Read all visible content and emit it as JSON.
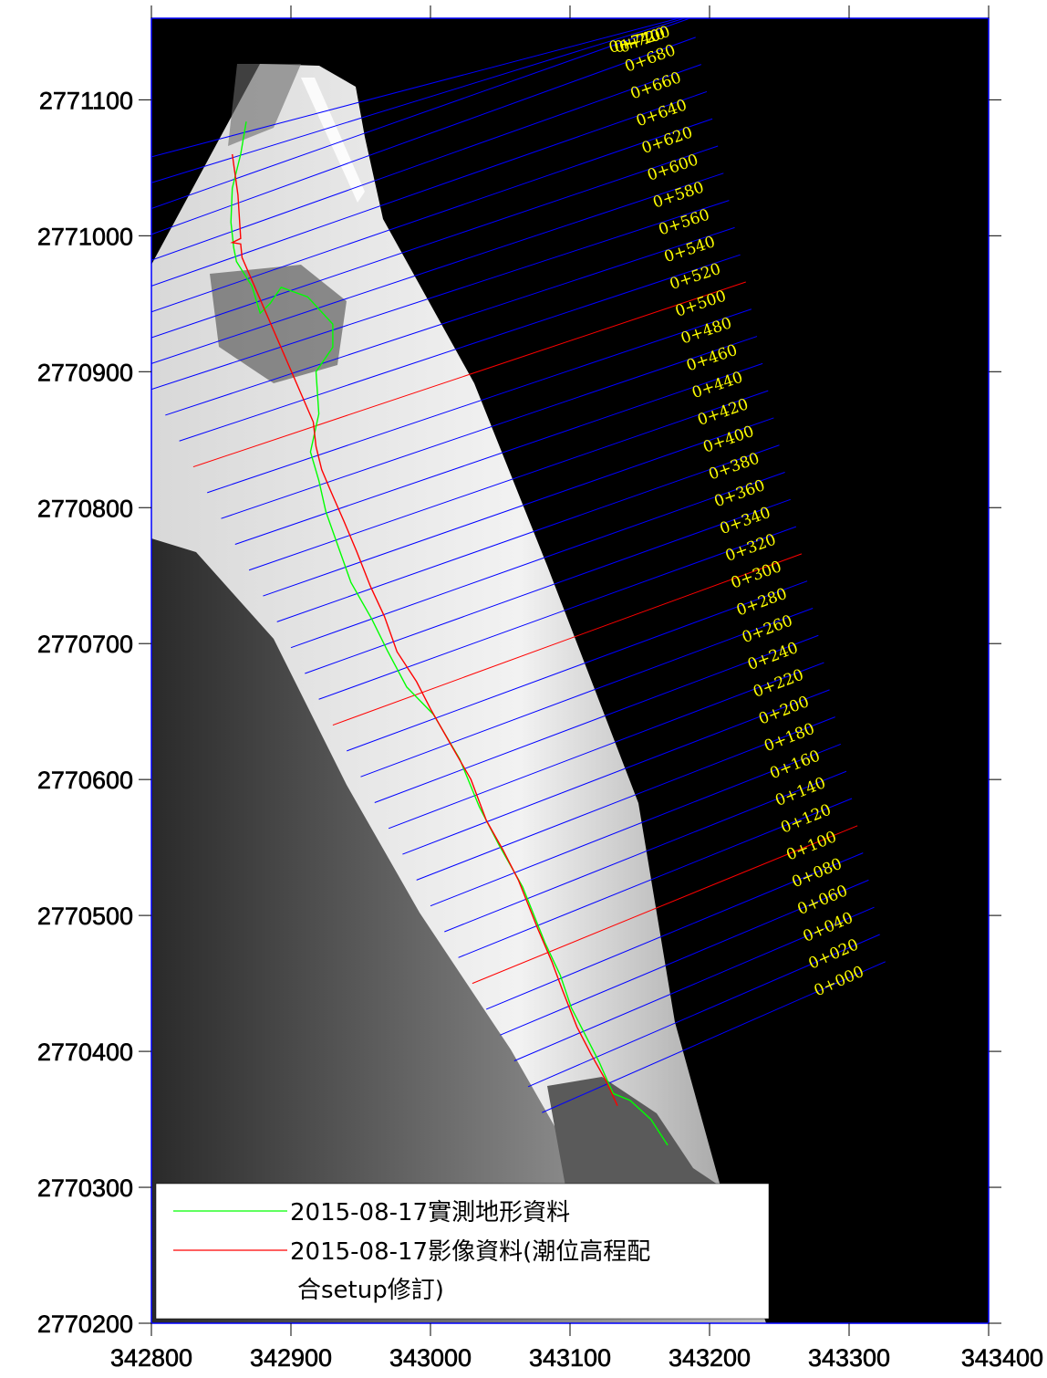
{
  "chart_data": {
    "type": "line",
    "x_axis": {
      "ticks": [
        342800,
        342900,
        343000,
        343100,
        343200,
        343300,
        343400
      ],
      "tick_labels": [
        "342800",
        "342900",
        "343000",
        "343100",
        "343200",
        "343300",
        "343400"
      ],
      "range": [
        342800,
        343400
      ]
    },
    "y_axis": {
      "ticks": [
        2770200,
        2770300,
        2770400,
        2770500,
        2770600,
        2770700,
        2770800,
        2770900,
        2771000,
        2771100
      ],
      "tick_labels": [
        "2770200",
        "2770300",
        "2770400",
        "2770500",
        "2770600",
        "2770700",
        "2770800",
        "2770900",
        "2771000",
        "2771100"
      ],
      "range": [
        2770200,
        2771160
      ]
    },
    "grid": false,
    "background": "grayscale aerial orthophoto with black no-data region",
    "series": [
      {
        "name": "2015-08-17實測地形資料",
        "color": "#00ff00",
        "points": [
          [
            343170,
            2770331
          ],
          [
            343158,
            2770350
          ],
          [
            343143,
            2770364
          ],
          [
            343131,
            2770369
          ],
          [
            343127,
            2770378
          ],
          [
            343121,
            2770392
          ],
          [
            343111,
            2770412
          ],
          [
            343101,
            2770432
          ],
          [
            343093,
            2770456
          ],
          [
            343082,
            2770480
          ],
          [
            343066,
            2770521
          ],
          [
            343049,
            2770552
          ],
          [
            343035,
            2770580
          ],
          [
            343021,
            2770615
          ],
          [
            343002,
            2770648
          ],
          [
            342983,
            2770668
          ],
          [
            342969,
            2770695
          ],
          [
            342958,
            2770718
          ],
          [
            342943,
            2770745
          ],
          [
            342935,
            2770768
          ],
          [
            342925,
            2770797
          ],
          [
            342920,
            2770820
          ],
          [
            342914,
            2770841
          ],
          [
            342920,
            2770869
          ],
          [
            342918,
            2770900
          ],
          [
            342930,
            2770918
          ],
          [
            342930,
            2770935
          ],
          [
            342912,
            2770955
          ],
          [
            342893,
            2770962
          ],
          [
            342885,
            2770950
          ],
          [
            342878,
            2770943
          ],
          [
            342872,
            2770963
          ],
          [
            342861,
            2770981
          ],
          [
            342859,
            2770991
          ],
          [
            342857,
            2771010
          ],
          [
            342858,
            2771035
          ],
          [
            342864,
            2771060
          ],
          [
            342868,
            2771084
          ]
        ]
      },
      {
        "name": "2015-08-17影像資料(潮位高程配合setup修訂)",
        "color": "#ff0000",
        "points": [
          [
            343134,
            2770360
          ],
          [
            343126,
            2770378
          ],
          [
            343115,
            2770398
          ],
          [
            343105,
            2770418
          ],
          [
            343095,
            2770444
          ],
          [
            343087,
            2770466
          ],
          [
            343077,
            2770490
          ],
          [
            343063,
            2770526
          ],
          [
            343052,
            2770548
          ],
          [
            343040,
            2770570
          ],
          [
            343029,
            2770600
          ],
          [
            343015,
            2770625
          ],
          [
            343000,
            2770652
          ],
          [
            342990,
            2770672
          ],
          [
            342976,
            2770694
          ],
          [
            342967,
            2770720
          ],
          [
            342957,
            2770742
          ],
          [
            342947,
            2770768
          ],
          [
            342938,
            2770790
          ],
          [
            342929,
            2770811
          ],
          [
            342922,
            2770828
          ],
          [
            342918,
            2770845
          ],
          [
            342916,
            2770863
          ],
          [
            342865,
            2770984
          ],
          [
            342864,
            2770994
          ],
          [
            342858,
            2770995
          ],
          [
            342864,
            2770998
          ],
          [
            342862,
            2771030
          ],
          [
            342858,
            2771060
          ]
        ]
      }
    ],
    "transects": [
      {
        "label": "0+000",
        "line": [
          [
            343080,
            2770355
          ],
          [
            343326,
            2770466
          ]
        ],
        "color": "#0000ff"
      },
      {
        "label": "0+020",
        "line": [
          [
            343070,
            2770374
          ],
          [
            343322,
            2770486
          ]
        ],
        "color": "#0000ff"
      },
      {
        "label": "0+040",
        "line": [
          [
            343060,
            2770393
          ],
          [
            343318,
            2770506
          ]
        ],
        "color": "#0000ff"
      },
      {
        "label": "0+060",
        "line": [
          [
            343050,
            2770412
          ],
          [
            343314,
            2770526
          ]
        ],
        "color": "#0000ff"
      },
      {
        "label": "0+080",
        "line": [
          [
            343040,
            2770431
          ],
          [
            343310,
            2770546
          ]
        ],
        "color": "#0000ff"
      },
      {
        "label": "0+100",
        "line": [
          [
            343030,
            2770450
          ],
          [
            343306,
            2770566
          ]
        ],
        "color": "#ff0000"
      },
      {
        "label": "0+120",
        "line": [
          [
            343020,
            2770469
          ],
          [
            343302,
            2770586
          ]
        ],
        "color": "#0000ff"
      },
      {
        "label": "0+140",
        "line": [
          [
            343010,
            2770488
          ],
          [
            343298,
            2770606
          ]
        ],
        "color": "#0000ff"
      },
      {
        "label": "0+160",
        "line": [
          [
            343000,
            2770507
          ],
          [
            343294,
            2770626
          ]
        ],
        "color": "#0000ff"
      },
      {
        "label": "0+180",
        "line": [
          [
            342990,
            2770526
          ],
          [
            343290,
            2770646
          ]
        ],
        "color": "#0000ff"
      },
      {
        "label": "0+200",
        "line": [
          [
            342980,
            2770545
          ],
          [
            343286,
            2770666
          ]
        ],
        "color": "#0000ff"
      },
      {
        "label": "0+220",
        "line": [
          [
            342970,
            2770564
          ],
          [
            343282,
            2770686
          ]
        ],
        "color": "#0000ff"
      },
      {
        "label": "0+240",
        "line": [
          [
            342960,
            2770583
          ],
          [
            343278,
            2770706
          ]
        ],
        "color": "#0000ff"
      },
      {
        "label": "0+260",
        "line": [
          [
            342950,
            2770602
          ],
          [
            343274,
            2770726
          ]
        ],
        "color": "#0000ff"
      },
      {
        "label": "0+280",
        "line": [
          [
            342940,
            2770621
          ],
          [
            343270,
            2770746
          ]
        ],
        "color": "#0000ff"
      },
      {
        "label": "0+300",
        "line": [
          [
            342930,
            2770640
          ],
          [
            343266,
            2770766
          ]
        ],
        "color": "#ff0000"
      },
      {
        "label": "0+320",
        "line": [
          [
            342920,
            2770659
          ],
          [
            343262,
            2770786
          ]
        ],
        "color": "#0000ff"
      },
      {
        "label": "0+340",
        "line": [
          [
            342910,
            2770678
          ],
          [
            343258,
            2770806
          ]
        ],
        "color": "#0000ff"
      },
      {
        "label": "0+360",
        "line": [
          [
            342900,
            2770697
          ],
          [
            343254,
            2770826
          ]
        ],
        "color": "#0000ff"
      },
      {
        "label": "0+380",
        "line": [
          [
            342890,
            2770716
          ],
          [
            343250,
            2770846
          ]
        ],
        "color": "#0000ff"
      },
      {
        "label": "0+400",
        "line": [
          [
            342880,
            2770735
          ],
          [
            343246,
            2770866
          ]
        ],
        "color": "#0000ff"
      },
      {
        "label": "0+420",
        "line": [
          [
            342870,
            2770754
          ],
          [
            343242,
            2770886
          ]
        ],
        "color": "#0000ff"
      },
      {
        "label": "0+440",
        "line": [
          [
            342860,
            2770773
          ],
          [
            343238,
            2770906
          ]
        ],
        "color": "#0000ff"
      },
      {
        "label": "0+460",
        "line": [
          [
            342850,
            2770792
          ],
          [
            343234,
            2770926
          ]
        ],
        "color": "#0000ff"
      },
      {
        "label": "0+480",
        "line": [
          [
            342840,
            2770811
          ],
          [
            343230,
            2770946
          ]
        ],
        "color": "#0000ff"
      },
      {
        "label": "0+500",
        "line": [
          [
            342830,
            2770830
          ],
          [
            343226,
            2770966
          ]
        ],
        "color": "#ff0000"
      },
      {
        "label": "0+520",
        "line": [
          [
            342820,
            2770849
          ],
          [
            343222,
            2770986
          ]
        ],
        "color": "#0000ff"
      },
      {
        "label": "0+540",
        "line": [
          [
            342810,
            2770868
          ],
          [
            343218,
            2771006
          ]
        ],
        "color": "#0000ff"
      },
      {
        "label": "0+560",
        "line": [
          [
            342800,
            2770887
          ],
          [
            343214,
            2771026
          ]
        ],
        "color": "#0000ff"
      },
      {
        "label": "0+580",
        "line": [
          [
            342800,
            2770906
          ],
          [
            343210,
            2771046
          ]
        ],
        "color": "#0000ff"
      },
      {
        "label": "0+600",
        "line": [
          [
            342800,
            2770925
          ],
          [
            343206,
            2771066
          ]
        ],
        "color": "#0000ff"
      },
      {
        "label": "0+620",
        "line": [
          [
            342800,
            2770944
          ],
          [
            343202,
            2771086
          ]
        ],
        "color": "#0000ff"
      },
      {
        "label": "0+640",
        "line": [
          [
            342800,
            2770963
          ],
          [
            343198,
            2771106
          ]
        ],
        "color": "#0000ff"
      },
      {
        "label": "0+660",
        "line": [
          [
            342800,
            2770982
          ],
          [
            343194,
            2771126
          ]
        ],
        "color": "#0000ff"
      },
      {
        "label": "0+680",
        "line": [
          [
            342800,
            2771001
          ],
          [
            343190,
            2771146
          ]
        ],
        "color": "#0000ff"
      },
      {
        "label": "0+700",
        "line": [
          [
            342800,
            2771020
          ],
          [
            343186,
            2771160
          ]
        ],
        "color": "#0000ff"
      },
      {
        "label": "0+720",
        "line": [
          [
            342800,
            2771039
          ],
          [
            343182,
            2771160
          ]
        ],
        "color": "#0000ff"
      },
      {
        "label": "0+740",
        "line": [
          [
            342800,
            2771058
          ],
          [
            343178,
            2771160
          ]
        ],
        "color": "#0000ff"
      }
    ],
    "legend": {
      "placement": "bottom-left",
      "entries": [
        {
          "label": "2015-08-17實測地形資料",
          "color": "#00ff00"
        },
        {
          "label_line1": "2015-08-17影像資料(潮位高程配",
          "label_line2": "合setup修訂)",
          "color": "#ff0000"
        }
      ]
    },
    "colors": {
      "no_data": "#000000",
      "axis": "#000000",
      "frame": "#0000ff",
      "station_label": "#ffff00"
    }
  }
}
